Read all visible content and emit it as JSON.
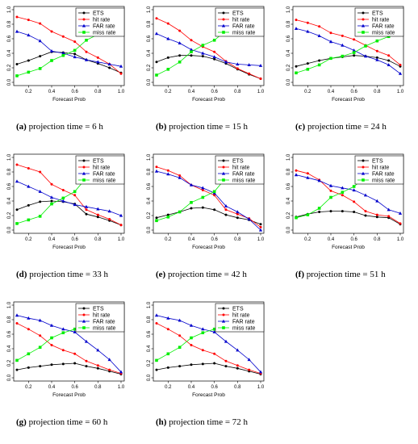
{
  "chart_data": [
    {
      "type": "line",
      "caption": {
        "label": "(a)",
        "text": "projection time = 6 h"
      },
      "xlabel": "Forecast Prob",
      "xlim": [
        0.1,
        1.0
      ],
      "ylim": [
        0,
        1.0
      ],
      "xticks": [
        "0.2",
        "0.4",
        "0.6",
        "0.8",
        "1.0"
      ],
      "yticks": [
        "0.0",
        "0.2",
        "0.4",
        "0.6",
        "0.8",
        "1.0"
      ],
      "legend": "top-right",
      "x": [
        0.1,
        0.2,
        0.3,
        0.4,
        0.5,
        0.6,
        0.7,
        0.8,
        0.9,
        1.0
      ],
      "series": [
        {
          "name": "ETS",
          "values": [
            0.25,
            0.3,
            0.36,
            0.42,
            0.41,
            0.39,
            0.31,
            0.26,
            0.2,
            0.13
          ]
        },
        {
          "name": "hit rate",
          "values": [
            0.9,
            0.86,
            0.81,
            0.7,
            0.63,
            0.56,
            0.42,
            0.34,
            0.25,
            0.12
          ]
        },
        {
          "name": "FAR rate",
          "values": [
            0.7,
            0.65,
            0.57,
            0.43,
            0.4,
            0.35,
            0.31,
            0.28,
            0.25,
            0.22
          ]
        },
        {
          "name": "miss rate",
          "values": [
            0.09,
            0.14,
            0.19,
            0.3,
            0.37,
            0.44,
            0.58,
            0.66,
            0.75,
            0.88
          ]
        }
      ]
    },
    {
      "type": "line",
      "caption": {
        "label": "(b)",
        "text": "projection time = 15 h"
      },
      "xlabel": "Forecast Prob",
      "xlim": [
        0.1,
        1.0
      ],
      "ylim": [
        0,
        1.0
      ],
      "xticks": [
        "0.2",
        "0.4",
        "0.6",
        "0.8",
        "1.0"
      ],
      "yticks": [
        "0.0",
        "0.2",
        "0.4",
        "0.6",
        "0.8",
        "1.0"
      ],
      "legend": "top-right",
      "x": [
        0.1,
        0.2,
        0.3,
        0.4,
        0.5,
        0.6,
        0.7,
        0.8,
        0.9,
        1.0
      ],
      "series": [
        {
          "name": "ETS",
          "values": [
            0.28,
            0.34,
            0.37,
            0.37,
            0.36,
            0.32,
            0.26,
            0.18,
            0.11,
            0.05
          ]
        },
        {
          "name": "hit rate",
          "values": [
            0.88,
            0.81,
            0.71,
            0.58,
            0.49,
            0.42,
            0.29,
            0.19,
            0.12,
            0.05
          ]
        },
        {
          "name": "FAR rate",
          "values": [
            0.67,
            0.6,
            0.54,
            0.45,
            0.4,
            0.35,
            0.28,
            0.25,
            0.24,
            0.23
          ]
        },
        {
          "name": "miss rate",
          "values": [
            0.1,
            0.18,
            0.28,
            0.42,
            0.51,
            0.58,
            0.71,
            0.81,
            0.88,
            0.95
          ]
        }
      ]
    },
    {
      "type": "line",
      "caption": {
        "label": "(c)",
        "text": "projection time = 24 h"
      },
      "xlabel": "Forecast Prob",
      "xlim": [
        0.1,
        1.0
      ],
      "ylim": [
        0,
        1.0
      ],
      "xticks": [
        "0.2",
        "0.4",
        "0.6",
        "0.8",
        "1.0"
      ],
      "yticks": [
        "0.0",
        "0.2",
        "0.4",
        "0.6",
        "0.8",
        "1.0"
      ],
      "legend": "top-right",
      "x": [
        0.1,
        0.2,
        0.3,
        0.4,
        0.5,
        0.6,
        0.7,
        0.8,
        0.9,
        1.0
      ],
      "series": [
        {
          "name": "ETS",
          "values": [
            0.22,
            0.26,
            0.3,
            0.33,
            0.35,
            0.37,
            0.36,
            0.34,
            0.3,
            0.22
          ]
        },
        {
          "name": "hit rate",
          "values": [
            0.86,
            0.82,
            0.77,
            0.68,
            0.64,
            0.59,
            0.51,
            0.43,
            0.37,
            0.24
          ]
        },
        {
          "name": "FAR rate",
          "values": [
            0.74,
            0.7,
            0.64,
            0.56,
            0.51,
            0.44,
            0.36,
            0.31,
            0.24,
            0.12
          ]
        },
        {
          "name": "miss rate",
          "values": [
            0.13,
            0.18,
            0.24,
            0.33,
            0.36,
            0.41,
            0.5,
            0.57,
            0.63,
            0.76
          ]
        }
      ]
    },
    {
      "type": "line",
      "caption": {
        "label": "(d)",
        "text": "projection time = 33 h"
      },
      "xlabel": "Forecast Prob",
      "xlim": [
        0.1,
        1.0
      ],
      "ylim": [
        0,
        1.0
      ],
      "xticks": [
        "0.2",
        "0.4",
        "0.6",
        "0.8",
        "1.0"
      ],
      "yticks": [
        "0.0",
        "0.2",
        "0.4",
        "0.6",
        "0.8",
        "1.0"
      ],
      "legend": "top-right",
      "x": [
        0.1,
        0.2,
        0.3,
        0.4,
        0.5,
        0.6,
        0.7,
        0.8,
        0.9,
        1.0
      ],
      "series": [
        {
          "name": "ETS",
          "values": [
            0.28,
            0.34,
            0.39,
            0.4,
            0.39,
            0.36,
            0.22,
            0.18,
            0.13,
            0.07
          ]
        },
        {
          "name": "hit rate",
          "values": [
            0.9,
            0.85,
            0.8,
            0.63,
            0.55,
            0.48,
            0.28,
            0.21,
            0.15,
            0.07
          ]
        },
        {
          "name": "FAR rate",
          "values": [
            0.67,
            0.6,
            0.53,
            0.45,
            0.4,
            0.35,
            0.32,
            0.29,
            0.26,
            0.2
          ]
        },
        {
          "name": "miss rate",
          "values": [
            0.09,
            0.14,
            0.19,
            0.36,
            0.44,
            0.53,
            0.72,
            0.79,
            0.85,
            0.93
          ]
        }
      ]
    },
    {
      "type": "line",
      "caption": {
        "label": "(e)",
        "text": "projection time = 42 h"
      },
      "xlabel": "Forecast Prob",
      "xlim": [
        0.1,
        1.0
      ],
      "ylim": [
        0,
        1.0
      ],
      "xticks": [
        "0.2",
        "0.4",
        "0.6",
        "0.8",
        "1.0"
      ],
      "yticks": [
        "0.0",
        "0.2",
        "0.4",
        "0.6",
        "0.8",
        "1.0"
      ],
      "legend": "top-right",
      "x": [
        0.1,
        0.2,
        0.3,
        0.4,
        0.5,
        0.6,
        0.7,
        0.8,
        0.9,
        1.0
      ],
      "series": [
        {
          "name": "ETS",
          "values": [
            0.17,
            0.21,
            0.25,
            0.3,
            0.31,
            0.28,
            0.21,
            0.17,
            0.14,
            0.08
          ]
        },
        {
          "name": "hit rate",
          "values": [
            0.87,
            0.82,
            0.75,
            0.62,
            0.55,
            0.48,
            0.28,
            0.22,
            0.16,
            0.04
          ]
        },
        {
          "name": "FAR rate",
          "values": [
            0.81,
            0.77,
            0.72,
            0.62,
            0.58,
            0.51,
            0.33,
            0.25,
            0.15,
            0.0
          ]
        },
        {
          "name": "miss rate",
          "values": [
            0.13,
            0.18,
            0.25,
            0.38,
            0.45,
            0.53,
            0.72,
            0.78,
            0.84,
            0.96
          ]
        }
      ]
    },
    {
      "type": "line",
      "caption": {
        "label": "(f)",
        "text": "projection time = 51 h"
      },
      "xlabel": "Forecast Prob",
      "xlim": [
        0.1,
        1.0
      ],
      "ylim": [
        0,
        1.0
      ],
      "xticks": [
        "0.2",
        "0.4",
        "0.6",
        "0.8",
        "1.0"
      ],
      "yticks": [
        "0.0",
        "0.2",
        "0.4",
        "0.6",
        "0.8",
        "1.0"
      ],
      "legend": "top-right",
      "x": [
        0.1,
        0.2,
        0.3,
        0.4,
        0.5,
        0.6,
        0.7,
        0.8,
        0.9,
        1.0
      ],
      "series": [
        {
          "name": "ETS",
          "values": [
            0.18,
            0.22,
            0.25,
            0.26,
            0.26,
            0.25,
            0.2,
            0.18,
            0.17,
            0.08
          ]
        },
        {
          "name": "hit rate",
          "values": [
            0.82,
            0.78,
            0.69,
            0.54,
            0.48,
            0.39,
            0.26,
            0.21,
            0.19,
            0.09
          ]
        },
        {
          "name": "FAR rate",
          "values": [
            0.76,
            0.72,
            0.68,
            0.61,
            0.58,
            0.55,
            0.48,
            0.4,
            0.28,
            0.23
          ]
        },
        {
          "name": "miss rate",
          "values": [
            0.17,
            0.21,
            0.3,
            0.45,
            0.52,
            0.6,
            0.73,
            0.78,
            0.8,
            0.91
          ]
        }
      ]
    },
    {
      "type": "line",
      "caption": {
        "label": "(g)",
        "text": "projection time = 60 h"
      },
      "xlabel": "Forecast Prob",
      "xlim": [
        0.1,
        1.0
      ],
      "ylim": [
        0,
        1.0
      ],
      "xticks": [
        "0.2",
        "0.4",
        "0.6",
        "0.8",
        "1.0"
      ],
      "yticks": [
        "0.0",
        "0.2",
        "0.4",
        "0.6",
        "0.8",
        "1.0"
      ],
      "legend": "top-right",
      "x": [
        0.1,
        0.2,
        0.3,
        0.4,
        0.5,
        0.6,
        0.7,
        0.8,
        0.9,
        1.0
      ],
      "series": [
        {
          "name": "ETS",
          "values": [
            0.11,
            0.14,
            0.16,
            0.18,
            0.19,
            0.2,
            0.16,
            0.13,
            0.09,
            0.05
          ]
        },
        {
          "name": "hit rate",
          "values": [
            0.75,
            0.67,
            0.58,
            0.45,
            0.38,
            0.33,
            0.23,
            0.17,
            0.11,
            0.06
          ]
        },
        {
          "name": "FAR rate",
          "values": [
            0.86,
            0.82,
            0.79,
            0.72,
            0.67,
            0.63,
            0.5,
            0.38,
            0.25,
            0.08
          ]
        },
        {
          "name": "miss rate",
          "values": [
            0.24,
            0.33,
            0.42,
            0.55,
            0.62,
            0.67,
            0.77,
            0.83,
            0.89,
            0.94
          ]
        }
      ]
    },
    {
      "type": "line",
      "caption": {
        "label": "(h)",
        "text": "projection time = 72 h"
      },
      "xlabel": "Forecast Prob",
      "xlim": [
        0.1,
        1.0
      ],
      "ylim": [
        0,
        1.0
      ],
      "xticks": [
        "0.2",
        "0.4",
        "0.6",
        "0.8",
        "1.0"
      ],
      "yticks": [
        "0.0",
        "0.2",
        "0.4",
        "0.6",
        "0.8",
        "1.0"
      ],
      "legend": "top-right",
      "x": [
        0.1,
        0.2,
        0.3,
        0.4,
        0.5,
        0.6,
        0.7,
        0.8,
        0.9,
        1.0
      ],
      "series": [
        {
          "name": "ETS",
          "values": [
            0.11,
            0.14,
            0.16,
            0.18,
            0.19,
            0.2,
            0.16,
            0.13,
            0.09,
            0.05
          ]
        },
        {
          "name": "hit rate",
          "values": [
            0.75,
            0.67,
            0.58,
            0.45,
            0.38,
            0.33,
            0.23,
            0.17,
            0.11,
            0.06
          ]
        },
        {
          "name": "FAR rate",
          "values": [
            0.86,
            0.82,
            0.79,
            0.72,
            0.67,
            0.63,
            0.5,
            0.38,
            0.25,
            0.08
          ]
        },
        {
          "name": "miss rate",
          "values": [
            0.24,
            0.33,
            0.42,
            0.55,
            0.62,
            0.67,
            0.77,
            0.83,
            0.89,
            0.94
          ]
        }
      ]
    }
  ],
  "series_styles": [
    {
      "color": "#000000",
      "marker": "circle"
    },
    {
      "color": "#ff0000",
      "marker": "circle"
    },
    {
      "color": "#0000cc",
      "marker": "triangle"
    },
    {
      "color": "#00ee00",
      "marker": "square"
    }
  ]
}
